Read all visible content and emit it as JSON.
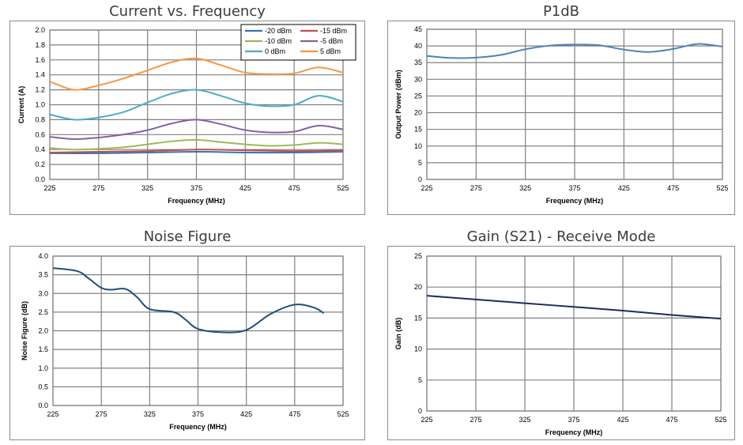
{
  "chart_data": [
    {
      "id": "current",
      "type": "line",
      "title": "Current vs. Frequency",
      "xlabel": "Frequency (MHz)",
      "ylabel": "Current (A)",
      "xlim": [
        225,
        525
      ],
      "ylim": [
        0,
        2.0
      ],
      "xticks": [
        225,
        275,
        325,
        375,
        425,
        475,
        525
      ],
      "yticks": [
        0.0,
        0.2,
        0.4,
        0.6,
        0.8,
        1.0,
        1.2,
        1.4,
        1.6,
        1.8,
        2.0
      ],
      "ytick_labels": [
        "0.0",
        "0.2",
        "0.4",
        "0.6",
        "0.8",
        "1.0",
        "1.2",
        "1.4",
        "1.6",
        "1.8",
        "2.0"
      ],
      "grid": true,
      "legend_position": "top-right",
      "series": [
        {
          "name": "-20 dBm",
          "color": "#3a73b5",
          "x": [
            225,
            275,
            325,
            375,
            425,
            475,
            525
          ],
          "values": [
            0.35,
            0.35,
            0.36,
            0.37,
            0.36,
            0.36,
            0.37
          ]
        },
        {
          "name": "-15 dBm",
          "color": "#c0504d",
          "x": [
            225,
            275,
            325,
            375,
            425,
            475,
            525
          ],
          "values": [
            0.36,
            0.37,
            0.38,
            0.4,
            0.39,
            0.38,
            0.39
          ]
        },
        {
          "name": "-10 dBm",
          "color": "#9bbb59",
          "x": [
            225,
            250,
            275,
            300,
            325,
            350,
            375,
            400,
            425,
            450,
            475,
            500,
            525
          ],
          "values": [
            0.42,
            0.4,
            0.41,
            0.43,
            0.47,
            0.51,
            0.53,
            0.5,
            0.47,
            0.45,
            0.46,
            0.49,
            0.47
          ]
        },
        {
          "name": "-5 dBm",
          "color": "#8064a2",
          "x": [
            225,
            250,
            275,
            300,
            325,
            350,
            375,
            400,
            425,
            450,
            475,
            500,
            525
          ],
          "values": [
            0.57,
            0.54,
            0.56,
            0.6,
            0.66,
            0.75,
            0.8,
            0.74,
            0.66,
            0.63,
            0.64,
            0.72,
            0.67
          ]
        },
        {
          "name": "0 dBm",
          "color": "#4bacc6",
          "x": [
            225,
            250,
            275,
            300,
            325,
            350,
            375,
            400,
            425,
            450,
            475,
            500,
            525
          ],
          "values": [
            0.87,
            0.8,
            0.83,
            0.9,
            1.03,
            1.15,
            1.2,
            1.12,
            1.02,
            0.98,
            1.0,
            1.12,
            1.04
          ]
        },
        {
          "name": "5 dBm",
          "color": "#f79646",
          "x": [
            225,
            250,
            275,
            300,
            325,
            350,
            375,
            400,
            425,
            450,
            475,
            500,
            525
          ],
          "values": [
            1.31,
            1.2,
            1.26,
            1.35,
            1.46,
            1.57,
            1.62,
            1.53,
            1.43,
            1.41,
            1.42,
            1.5,
            1.43
          ]
        }
      ]
    },
    {
      "id": "p1db",
      "type": "line",
      "title": "P1dB",
      "xlabel": "Frequency (MHz)",
      "ylabel": "Output Power (dBm)",
      "xlim": [
        225,
        525
      ],
      "ylim": [
        0,
        45
      ],
      "xticks": [
        225,
        275,
        325,
        375,
        425,
        475,
        525
      ],
      "yticks": [
        0,
        5,
        10,
        15,
        20,
        25,
        30,
        35,
        40,
        45
      ],
      "ytick_labels": [
        "0",
        "5",
        "10",
        "15",
        "20",
        "25",
        "30",
        "35",
        "40",
        "45"
      ],
      "grid": true,
      "series": [
        {
          "name": "P1dB",
          "color": "#4f81bd",
          "x": [
            225,
            250,
            275,
            300,
            325,
            350,
            375,
            400,
            425,
            450,
            475,
            500,
            525
          ],
          "values": [
            37.0,
            36.4,
            36.5,
            37.3,
            39.0,
            40.1,
            40.4,
            40.2,
            38.9,
            38.2,
            39.1,
            40.6,
            39.8
          ]
        }
      ]
    },
    {
      "id": "noise",
      "type": "line",
      "title": "Noise Figure",
      "xlabel": "Frequency (MHz)",
      "ylabel": "Noise Figure (dB)",
      "xlim": [
        225,
        525
      ],
      "ylim": [
        0,
        4.0
      ],
      "xticks": [
        225,
        275,
        325,
        375,
        425,
        475,
        525
      ],
      "yticks": [
        0.0,
        0.5,
        1.0,
        1.5,
        2.0,
        2.5,
        3.0,
        3.5,
        4.0
      ],
      "ytick_labels": [
        "0.0",
        "0.5",
        "1.0",
        "1.5",
        "2.0",
        "2.5",
        "3.0",
        "3.5",
        "4.0"
      ],
      "grid": true,
      "series": [
        {
          "name": "Noise Figure",
          "color": "#1f4e79",
          "x": [
            225,
            250,
            262,
            275,
            285,
            300,
            312,
            325,
            350,
            362,
            375,
            400,
            425,
            450,
            475,
            495,
            505
          ],
          "values": [
            3.68,
            3.6,
            3.4,
            3.15,
            3.1,
            3.12,
            2.9,
            2.58,
            2.5,
            2.3,
            2.05,
            1.96,
            2.02,
            2.45,
            2.7,
            2.62,
            2.47
          ]
        }
      ]
    },
    {
      "id": "gain",
      "type": "line",
      "title": "Gain (S21) - Receive Mode",
      "xlabel": "Frequency (MHz)",
      "ylabel": "Gain (dB)",
      "xlim": [
        225,
        525
      ],
      "ylim": [
        0,
        25
      ],
      "xticks": [
        225,
        275,
        325,
        375,
        425,
        475,
        525
      ],
      "yticks": [
        0,
        5,
        10,
        15,
        20,
        25
      ],
      "ytick_labels": [
        "0",
        "5",
        "10",
        "15",
        "20",
        "25"
      ],
      "grid": true,
      "series": [
        {
          "name": "Gain",
          "color": "#1f2a5a",
          "x": [
            225,
            275,
            325,
            375,
            425,
            475,
            525
          ],
          "values": [
            18.6,
            18.0,
            17.4,
            16.8,
            16.2,
            15.5,
            14.9
          ]
        }
      ]
    }
  ]
}
